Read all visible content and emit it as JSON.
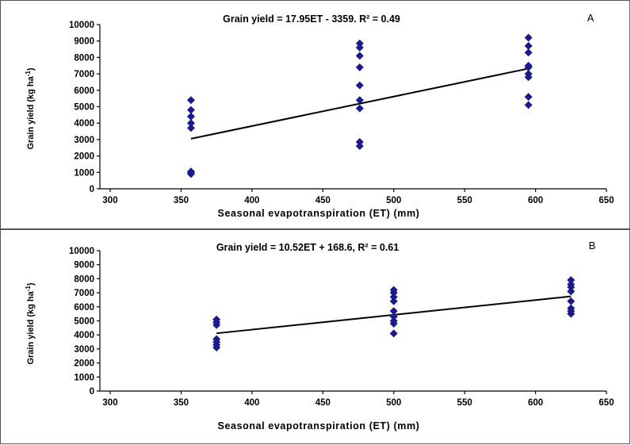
{
  "chart_data": [
    {
      "type": "scatter",
      "panel_label": "A",
      "equation": "Grain yield = 17.95ET - 3359. R² = 0.49",
      "xlabel": "Seasonal  evapotranspiration  (ET)  (mm)",
      "ylabel": "Grain yield (kg ha-1)",
      "xlim": [
        300,
        650
      ],
      "ylim": [
        0,
        10000
      ],
      "xticks": [
        "300",
        "350",
        "400",
        "450",
        "500",
        "550",
        "600",
        "650"
      ],
      "yticks": [
        "0",
        "1000",
        "2000",
        "3000",
        "4000",
        "5000",
        "6000",
        "7000",
        "8000",
        "9000",
        "10000"
      ],
      "points": [
        {
          "x": 357,
          "y": 900
        },
        {
          "x": 357,
          "y": 1000
        },
        {
          "x": 357,
          "y": 1050
        },
        {
          "x": 357,
          "y": 3700
        },
        {
          "x": 357,
          "y": 4000
        },
        {
          "x": 357,
          "y": 4400
        },
        {
          "x": 357,
          "y": 4800
        },
        {
          "x": 357,
          "y": 5400
        },
        {
          "x": 476,
          "y": 2600
        },
        {
          "x": 476,
          "y": 2850
        },
        {
          "x": 476,
          "y": 4900
        },
        {
          "x": 476,
          "y": 5400
        },
        {
          "x": 476,
          "y": 6300
        },
        {
          "x": 476,
          "y": 7400
        },
        {
          "x": 476,
          "y": 8100
        },
        {
          "x": 476,
          "y": 8600
        },
        {
          "x": 476,
          "y": 8850
        },
        {
          "x": 595,
          "y": 5100
        },
        {
          "x": 595,
          "y": 5600
        },
        {
          "x": 595,
          "y": 6800
        },
        {
          "x": 595,
          "y": 7000
        },
        {
          "x": 595,
          "y": 7400
        },
        {
          "x": 595,
          "y": 7500
        },
        {
          "x": 595,
          "y": 8300
        },
        {
          "x": 595,
          "y": 8700
        },
        {
          "x": 595,
          "y": 9200
        }
      ],
      "trendline": {
        "slope": 17.95,
        "intercept": -3359,
        "x_range": [
          357,
          595
        ]
      }
    },
    {
      "type": "scatter",
      "panel_label": "B",
      "equation": "Grain yield = 10.52ET + 168.6,  R² = 0.61",
      "xlabel": "Seasonal  evapotranspiration  (ET)  (mm)",
      "ylabel": "Grain yield (kg ha-1)",
      "xlim": [
        300,
        650
      ],
      "ylim": [
        0,
        10000
      ],
      "xticks": [
        "300",
        "350",
        "400",
        "450",
        "500",
        "550",
        "600",
        "650"
      ],
      "yticks": [
        "0",
        "1000",
        "2000",
        "3000",
        "4000",
        "5000",
        "6000",
        "7000",
        "8000",
        "9000",
        "10000"
      ],
      "points": [
        {
          "x": 375,
          "y": 3100
        },
        {
          "x": 375,
          "y": 3300
        },
        {
          "x": 375,
          "y": 3500
        },
        {
          "x": 375,
          "y": 3700
        },
        {
          "x": 375,
          "y": 4700
        },
        {
          "x": 375,
          "y": 4900
        },
        {
          "x": 375,
          "y": 5100
        },
        {
          "x": 500,
          "y": 4100
        },
        {
          "x": 500,
          "y": 4800
        },
        {
          "x": 500,
          "y": 5000
        },
        {
          "x": 500,
          "y": 5300
        },
        {
          "x": 500,
          "y": 5700
        },
        {
          "x": 500,
          "y": 6400
        },
        {
          "x": 500,
          "y": 6700
        },
        {
          "x": 500,
          "y": 7000
        },
        {
          "x": 500,
          "y": 7200
        },
        {
          "x": 625,
          "y": 5500
        },
        {
          "x": 625,
          "y": 5700
        },
        {
          "x": 625,
          "y": 5900
        },
        {
          "x": 625,
          "y": 6400
        },
        {
          "x": 625,
          "y": 7100
        },
        {
          "x": 625,
          "y": 7400
        },
        {
          "x": 625,
          "y": 7600
        },
        {
          "x": 625,
          "y": 7900
        }
      ],
      "trendline": {
        "slope": 10.52,
        "intercept": 168.6,
        "x_range": [
          375,
          625
        ]
      }
    }
  ]
}
